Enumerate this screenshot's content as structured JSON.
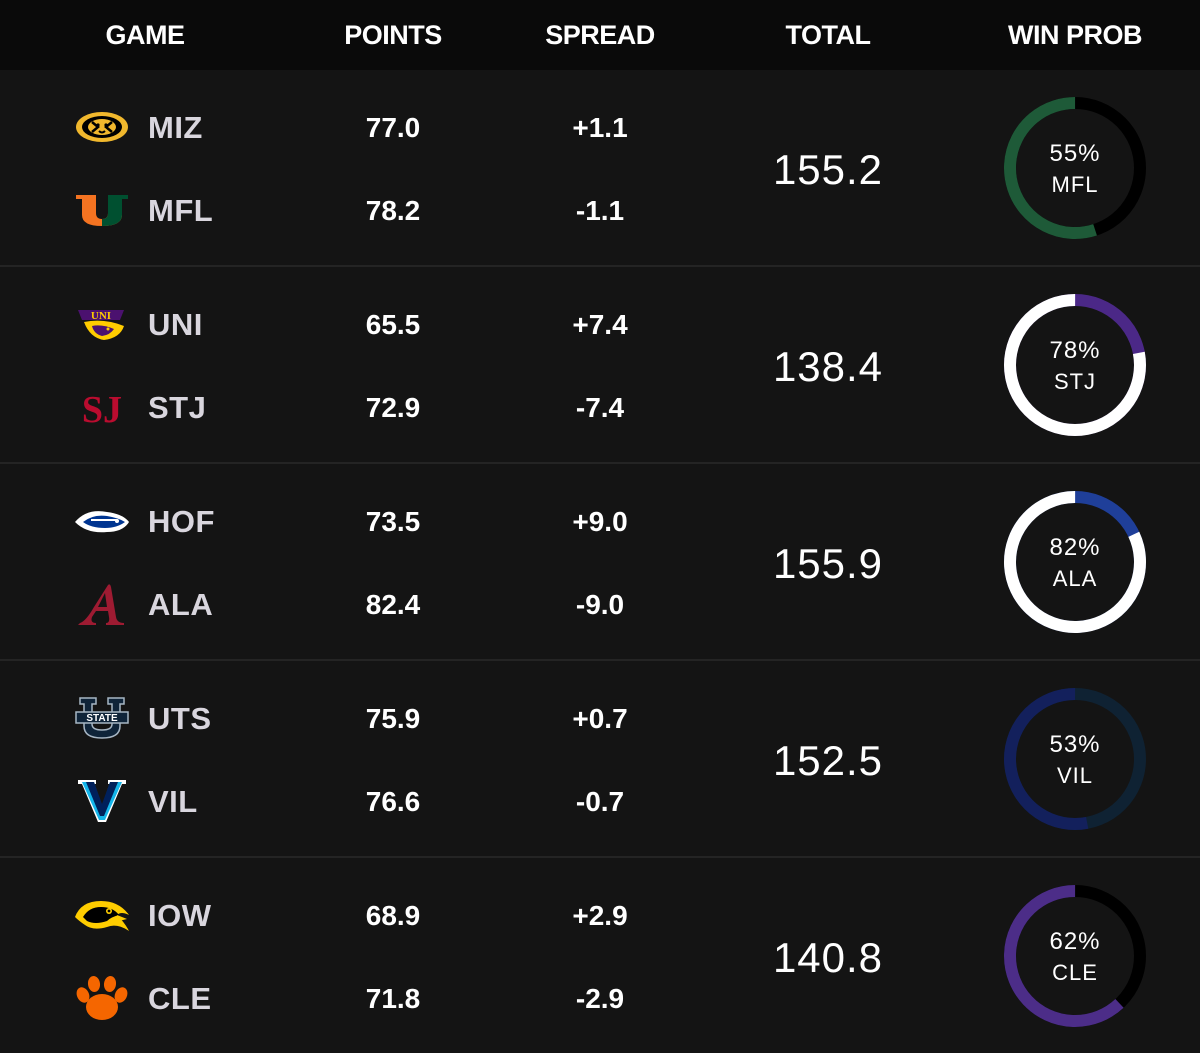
{
  "header": {
    "game": "GAME",
    "points": "POINTS",
    "spread": "SPREAD",
    "total": "TOTAL",
    "win_prob": "WIN PROB"
  },
  "games": [
    {
      "away": {
        "abbr": "MIZ",
        "points": "77.0",
        "spread": "+1.1",
        "logo_icon": "missouri-tiger-icon"
      },
      "home": {
        "abbr": "MFL",
        "points": "78.2",
        "spread": "-1.1",
        "logo_icon": "miami-u-icon"
      },
      "total": "155.2",
      "win_prob": {
        "pct": "55%",
        "team": "MFL",
        "value": 0.55,
        "color": "#1e5a38",
        "base_color": "#000000"
      }
    },
    {
      "away": {
        "abbr": "UNI",
        "points": "65.5",
        "spread": "+7.4",
        "logo_icon": "uni-panther-icon"
      },
      "home": {
        "abbr": "STJ",
        "points": "72.9",
        "spread": "-7.4",
        "logo_icon": "st-johns-sj-icon"
      },
      "total": "138.4",
      "win_prob": {
        "pct": "78%",
        "team": "STJ",
        "value": 0.78,
        "color": "#ffffff",
        "base_color": "#4b2887"
      }
    },
    {
      "away": {
        "abbr": "HOF",
        "points": "73.5",
        "spread": "+9.0",
        "logo_icon": "hofstra-pride-icon"
      },
      "home": {
        "abbr": "ALA",
        "points": "82.4",
        "spread": "-9.0",
        "logo_icon": "alabama-a-icon"
      },
      "total": "155.9",
      "win_prob": {
        "pct": "82%",
        "team": "ALA",
        "value": 0.82,
        "color": "#ffffff",
        "base_color": "#1f3f99"
      }
    },
    {
      "away": {
        "abbr": "UTS",
        "points": "75.9",
        "spread": "+0.7",
        "logo_icon": "utah-state-u-icon"
      },
      "home": {
        "abbr": "VIL",
        "points": "76.6",
        "spread": "-0.7",
        "logo_icon": "villanova-v-icon"
      },
      "total": "152.5",
      "win_prob": {
        "pct": "53%",
        "team": "VIL",
        "value": 0.53,
        "color": "#13205c",
        "base_color": "#0f2233"
      }
    },
    {
      "away": {
        "abbr": "IOW",
        "points": "68.9",
        "spread": "+2.9",
        "logo_icon": "iowa-hawkeye-icon"
      },
      "home": {
        "abbr": "CLE",
        "points": "71.8",
        "spread": "-2.9",
        "logo_icon": "clemson-paw-icon"
      },
      "total": "140.8",
      "win_prob": {
        "pct": "62%",
        "team": "CLE",
        "value": 0.62,
        "color": "#4c2d88",
        "base_color": "#000000"
      }
    }
  ]
}
